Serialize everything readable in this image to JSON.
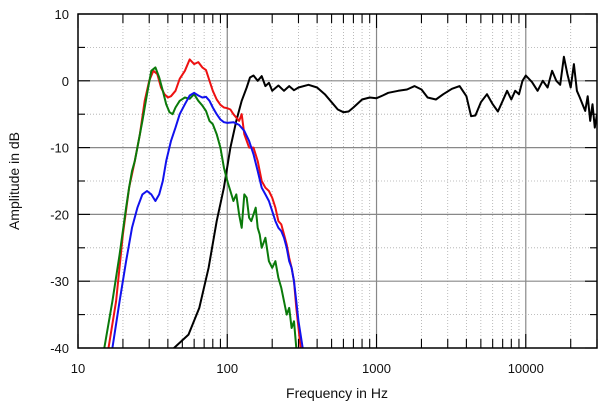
{
  "chart_data": {
    "type": "line",
    "title": "",
    "xlabel": "Frequency in Hz",
    "ylabel": "Amplitude in dB",
    "xscale": "log",
    "xlim": [
      10,
      30000
    ],
    "ylim": [
      -40,
      10
    ],
    "grid": true,
    "legend": "none",
    "x_tick_labels": [
      {
        "value": 10,
        "label": "10"
      },
      {
        "value": 100,
        "label": "100"
      },
      {
        "value": 1000,
        "label": "1000"
      },
      {
        "value": 10000,
        "label": "10000"
      }
    ],
    "y_tick_labels": [
      {
        "value": 10,
        "label": "10"
      },
      {
        "value": 0,
        "label": "0"
      },
      {
        "value": -10,
        "label": "-10"
      },
      {
        "value": -20,
        "label": "-20"
      },
      {
        "value": -30,
        "label": "-30"
      },
      {
        "value": -40,
        "label": "-40"
      }
    ],
    "series": [
      {
        "color": "#000000",
        "points": [
          [
            44,
            -40
          ],
          [
            55,
            -38
          ],
          [
            65,
            -34
          ],
          [
            75,
            -28
          ],
          [
            85,
            -21
          ],
          [
            95,
            -16
          ],
          [
            105,
            -10
          ],
          [
            115,
            -6
          ],
          [
            125,
            -3
          ],
          [
            135,
            -1
          ],
          [
            142,
            0.5
          ],
          [
            150,
            0.8
          ],
          [
            160,
            0
          ],
          [
            170,
            0.7
          ],
          [
            180,
            -0.8
          ],
          [
            190,
            -0.3
          ],
          [
            200,
            -1.5
          ],
          [
            220,
            -0.7
          ],
          [
            240,
            -1.5
          ],
          [
            260,
            -0.8
          ],
          [
            280,
            -1.4
          ],
          [
            300,
            -1
          ],
          [
            350,
            -0.6
          ],
          [
            400,
            -1
          ],
          [
            450,
            -2
          ],
          [
            500,
            -3.2
          ],
          [
            550,
            -4.3
          ],
          [
            600,
            -4.7
          ],
          [
            650,
            -4.6
          ],
          [
            700,
            -4
          ],
          [
            800,
            -2.8
          ],
          [
            900,
            -2.5
          ],
          [
            1000,
            -2.6
          ],
          [
            1100,
            -2.2
          ],
          [
            1200,
            -1.8
          ],
          [
            1400,
            -1.5
          ],
          [
            1600,
            -1.3
          ],
          [
            1800,
            -0.8
          ],
          [
            2000,
            -1.3
          ],
          [
            2200,
            -2.5
          ],
          [
            2500,
            -2.8
          ],
          [
            2800,
            -2
          ],
          [
            3200,
            -1.2
          ],
          [
            3600,
            -0.8
          ],
          [
            4000,
            -2.3
          ],
          [
            4300,
            -5.3
          ],
          [
            4600,
            -5.2
          ],
          [
            5000,
            -3.2
          ],
          [
            5500,
            -2
          ],
          [
            6000,
            -3.5
          ],
          [
            6500,
            -4.6
          ],
          [
            7000,
            -3
          ],
          [
            7500,
            -1.5
          ],
          [
            8000,
            -2.8
          ],
          [
            8500,
            -1.5
          ],
          [
            9000,
            -2
          ],
          [
            9500,
            0
          ],
          [
            10000,
            0.8
          ],
          [
            11000,
            -0.2
          ],
          [
            12000,
            -1.5
          ],
          [
            13000,
            0
          ],
          [
            14000,
            -1
          ],
          [
            15000,
            1.5
          ],
          [
            16000,
            0
          ],
          [
            17000,
            -0.6
          ],
          [
            18000,
            3.6
          ],
          [
            19000,
            1
          ],
          [
            20000,
            -1
          ],
          [
            21000,
            2.5
          ],
          [
            22000,
            -1.5
          ],
          [
            23000,
            -2.5
          ],
          [
            24000,
            -3.5
          ],
          [
            25000,
            -4.5
          ],
          [
            26000,
            -2.3
          ],
          [
            27000,
            -6
          ],
          [
            28000,
            -3.5
          ],
          [
            29000,
            -7
          ],
          [
            30000,
            -5
          ]
        ]
      },
      {
        "color": "#ee1111",
        "points": [
          [
            16,
            -40
          ],
          [
            18,
            -33
          ],
          [
            20,
            -23
          ],
          [
            22,
            -16
          ],
          [
            24,
            -12
          ],
          [
            26,
            -8
          ],
          [
            28,
            -3
          ],
          [
            30,
            0
          ],
          [
            32,
            1.5
          ],
          [
            34,
            1
          ],
          [
            36,
            -1
          ],
          [
            38,
            -2
          ],
          [
            40,
            -2.5
          ],
          [
            42,
            -2.3
          ],
          [
            45,
            -1.5
          ],
          [
            48,
            0.3
          ],
          [
            52,
            1.5
          ],
          [
            56,
            3.2
          ],
          [
            60,
            2.5
          ],
          [
            64,
            2.8
          ],
          [
            68,
            2
          ],
          [
            72,
            1.6
          ],
          [
            76,
            0
          ],
          [
            80,
            -1.5
          ],
          [
            85,
            -2.8
          ],
          [
            90,
            -3.6
          ],
          [
            95,
            -4
          ],
          [
            100,
            -4.1
          ],
          [
            105,
            -4.3
          ],
          [
            110,
            -5
          ],
          [
            120,
            -6
          ],
          [
            125,
            -5
          ],
          [
            130,
            -8
          ],
          [
            140,
            -10
          ],
          [
            150,
            -10
          ],
          [
            160,
            -12
          ],
          [
            170,
            -15
          ],
          [
            180,
            -16
          ],
          [
            190,
            -16.5
          ],
          [
            200,
            -17.5
          ],
          [
            210,
            -19
          ],
          [
            220,
            -21
          ],
          [
            230,
            -21.5
          ],
          [
            240,
            -23
          ],
          [
            250,
            -24.5
          ],
          [
            260,
            -26.5
          ],
          [
            270,
            -28
          ],
          [
            280,
            -30
          ],
          [
            290,
            -34
          ],
          [
            300,
            -37
          ],
          [
            310,
            -40
          ]
        ]
      },
      {
        "color": "#0a7a0a",
        "points": [
          [
            15,
            -40
          ],
          [
            17,
            -33
          ],
          [
            19,
            -26
          ],
          [
            21,
            -19
          ],
          [
            22,
            -16
          ],
          [
            23,
            -13.5
          ],
          [
            24,
            -12
          ],
          [
            25,
            -10
          ],
          [
            27,
            -6
          ],
          [
            29,
            -2
          ],
          [
            31,
            1.5
          ],
          [
            33,
            2
          ],
          [
            35,
            0.5
          ],
          [
            37,
            -1.5
          ],
          [
            39,
            -3.5
          ],
          [
            41,
            -4.7
          ],
          [
            43,
            -5
          ],
          [
            45,
            -4
          ],
          [
            48,
            -3
          ],
          [
            52,
            -2.5
          ],
          [
            56,
            -2.7
          ],
          [
            60,
            -2
          ],
          [
            64,
            -3
          ],
          [
            68,
            -3.7
          ],
          [
            72,
            -4.5
          ],
          [
            76,
            -6
          ],
          [
            80,
            -6.5
          ],
          [
            85,
            -8
          ],
          [
            90,
            -10
          ],
          [
            95,
            -13
          ],
          [
            100,
            -15
          ],
          [
            105,
            -16.5
          ],
          [
            110,
            -18
          ],
          [
            115,
            -17
          ],
          [
            120,
            -20
          ],
          [
            125,
            -22
          ],
          [
            130,
            -17
          ],
          [
            135,
            -17.5
          ],
          [
            140,
            -20.5
          ],
          [
            145,
            -21
          ],
          [
            150,
            -20
          ],
          [
            155,
            -19
          ],
          [
            160,
            -22
          ],
          [
            165,
            -23
          ],
          [
            170,
            -25
          ],
          [
            180,
            -23.5
          ],
          [
            190,
            -27
          ],
          [
            200,
            -28
          ],
          [
            210,
            -27
          ],
          [
            220,
            -29.5
          ],
          [
            230,
            -31
          ],
          [
            240,
            -33
          ],
          [
            250,
            -35
          ],
          [
            260,
            -34
          ],
          [
            270,
            -37
          ],
          [
            280,
            -36
          ],
          [
            290,
            -40
          ]
        ]
      },
      {
        "color": "#1111ee",
        "points": [
          [
            17,
            -40
          ],
          [
            19,
            -33
          ],
          [
            21,
            -27
          ],
          [
            23,
            -22
          ],
          [
            25,
            -19
          ],
          [
            27,
            -17
          ],
          [
            29,
            -16.5
          ],
          [
            31,
            -17
          ],
          [
            33,
            -18
          ],
          [
            35,
            -17
          ],
          [
            37,
            -15
          ],
          [
            39,
            -12
          ],
          [
            42,
            -9
          ],
          [
            45,
            -7
          ],
          [
            48,
            -5
          ],
          [
            52,
            -3.5
          ],
          [
            56,
            -2.2
          ],
          [
            60,
            -1.8
          ],
          [
            64,
            -2.2
          ],
          [
            68,
            -2.5
          ],
          [
            72,
            -2.4
          ],
          [
            76,
            -3
          ],
          [
            80,
            -4
          ],
          [
            85,
            -5
          ],
          [
            90,
            -5.8
          ],
          [
            95,
            -6.2
          ],
          [
            100,
            -6.3
          ],
          [
            110,
            -6.2
          ],
          [
            120,
            -6.6
          ],
          [
            130,
            -7.5
          ],
          [
            140,
            -9
          ],
          [
            150,
            -11
          ],
          [
            160,
            -13.5
          ],
          [
            170,
            -16
          ],
          [
            180,
            -17
          ],
          [
            190,
            -18
          ],
          [
            200,
            -19.5
          ],
          [
            210,
            -21
          ],
          [
            220,
            -22
          ],
          [
            230,
            -22.5
          ],
          [
            240,
            -23.5
          ],
          [
            250,
            -25
          ],
          [
            260,
            -27
          ],
          [
            270,
            -28
          ],
          [
            280,
            -30
          ],
          [
            290,
            -33
          ],
          [
            300,
            -36
          ],
          [
            320,
            -40
          ]
        ]
      }
    ]
  }
}
